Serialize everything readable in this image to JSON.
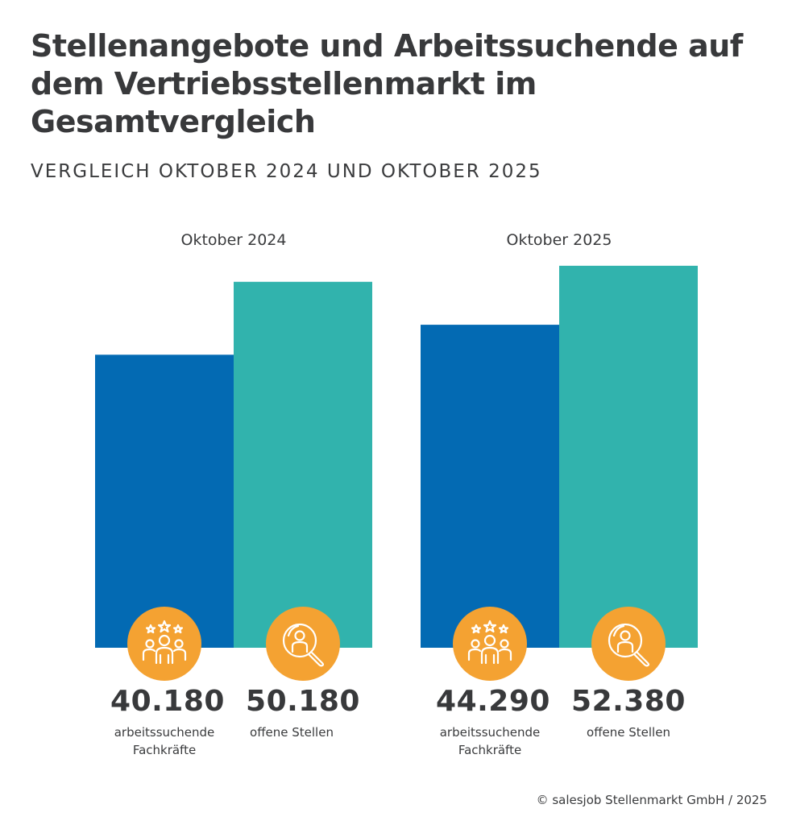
{
  "chart_data": {
    "type": "bar",
    "title": "Stellenangebote und Arbeitssuchende auf dem Vertriebsstellenmarkt im Gesamtvergleich",
    "subtitle": "VERGLEICH OKTOBER 2024 UND OKTOBER 2025",
    "categories": [
      "Oktober 2024",
      "Oktober 2025"
    ],
    "series": [
      {
        "name": "arbeitssuchende Fachkräfte",
        "color": "#036ab3",
        "icon": "people-stars-icon",
        "values": [
          40180,
          44290
        ],
        "labels": [
          "40.180",
          "44.290"
        ]
      },
      {
        "name": "offene Stellen",
        "color": "#31b3ad",
        "icon": "search-person-icon",
        "values": [
          50180,
          52380
        ],
        "labels": [
          "50.180",
          "52.380"
        ]
      }
    ],
    "series_caption_lines": [
      [
        "arbeitssuchende",
        "Fachkräfte"
      ],
      [
        "offene Stellen"
      ]
    ],
    "xlabel": "",
    "ylabel": "",
    "ylim": [
      0,
      58000
    ],
    "grid": false,
    "legend": "none",
    "icon_color": "#f4a232"
  },
  "footer": "© salesjob Stellenmarkt GmbH / 2025"
}
